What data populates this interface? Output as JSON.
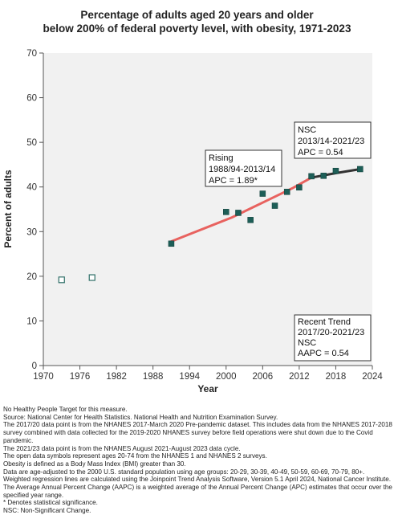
{
  "title_lines": [
    "Percentage of adults aged 20 years and older",
    "below 200% of federal poverty level, with obesity, 1971-2023"
  ],
  "chart_data": {
    "type": "scatter",
    "title": "Percentage of adults aged 20 years and older below 200% of federal poverty level, with obesity, 1971-2023",
    "xlabel": "Year",
    "ylabel": "Percent of adults",
    "xlim": [
      1970,
      2024
    ],
    "ylim": [
      0,
      70
    ],
    "x_ticks": [
      1970,
      1976,
      1982,
      1988,
      1994,
      2000,
      2006,
      2012,
      2018,
      2024
    ],
    "y_ticks": [
      0,
      10,
      20,
      30,
      40,
      50,
      60,
      70
    ],
    "grid": false,
    "points_open": [
      {
        "x": 1973,
        "y": 19.2
      },
      {
        "x": 1978,
        "y": 19.7
      }
    ],
    "points_filled": [
      {
        "x": 1991,
        "y": 27.3
      },
      {
        "x": 2000,
        "y": 34.4
      },
      {
        "x": 2002,
        "y": 34.2
      },
      {
        "x": 2004,
        "y": 32.6
      },
      {
        "x": 2006,
        "y": 38.5
      },
      {
        "x": 2008,
        "y": 35.8
      },
      {
        "x": 2010,
        "y": 38.9
      },
      {
        "x": 2012,
        "y": 39.9
      },
      {
        "x": 2014,
        "y": 42.4
      },
      {
        "x": 2016,
        "y": 42.5
      },
      {
        "x": 2018,
        "y": 43.6
      },
      {
        "x": 2022,
        "y": 44.0
      }
    ],
    "trend_rising": {
      "color": "#e8625f",
      "points": [
        {
          "x": 1991,
          "y": 27.8
        },
        {
          "x": 1996,
          "y": 30.5
        },
        {
          "x": 2001,
          "y": 33.2
        },
        {
          "x": 2006,
          "y": 36.5
        },
        {
          "x": 2011,
          "y": 39.8
        },
        {
          "x": 2014,
          "y": 42.1
        }
      ]
    },
    "trend_nsc": {
      "color": "#333333",
      "points": [
        {
          "x": 2014,
          "y": 42.1
        },
        {
          "x": 2018,
          "y": 43.1
        },
        {
          "x": 2022,
          "y": 44.0
        }
      ]
    },
    "annotations": [
      {
        "id": "rising",
        "lines": [
          "Rising",
          "1988/94-2013/14",
          "APC =  1.89*"
        ]
      },
      {
        "id": "nsc",
        "lines": [
          "NSC",
          "2013/14-2021/23",
          "APC =  0.54"
        ]
      },
      {
        "id": "recent",
        "lines": [
          "Recent Trend",
          "2017/20-2021/23",
          "NSC",
          "AAPC =  0.54"
        ]
      }
    ],
    "colors": {
      "plot_bg": "#f1f1f1",
      "point_fill": "#1d5e57",
      "open_stroke": "#2f6f68"
    }
  },
  "notes": [
    "No Healthy People Target for this measure.",
    "Source: National Center for Health Statistics. National Health and Nutrition Examination Survey.",
    "The 2017/20 data point is from the NHANES 2017-March 2020 Pre-pandemic dataset. This includes data from the NHANES 2017-2018 survey combined with data collected for the 2019-2020 NHANES survey before field operations were shut down due to the Covid pandemic.",
    "The 2021/23 data point is from the NHANES August 2021-August 2023 data cycle.",
    "The open data symbols represent ages 20-74 from the NHANES 1 and NHANES 2 surveys.",
    "Obesity is defined as a Body Mass Index (BMI) greater than 30.",
    "Data are age-adjusted to the 2000 U.S. standard population using age groups: 20-29, 30-39, 40-49, 50-59, 60-69, 70-79, 80+.",
    "Weighted regression lines are calculated using the Joinpoint Trend Analysis Software, Version 5.1 April 2024, National Cancer Institute.",
    "The Average Annual Percent Change (AAPC) is a weighted average of the Annual Percent Change (APC) estimates that occur over the specified year range.",
    "* Denotes statistical significance.",
    "NSC: Non-Significant Change."
  ]
}
